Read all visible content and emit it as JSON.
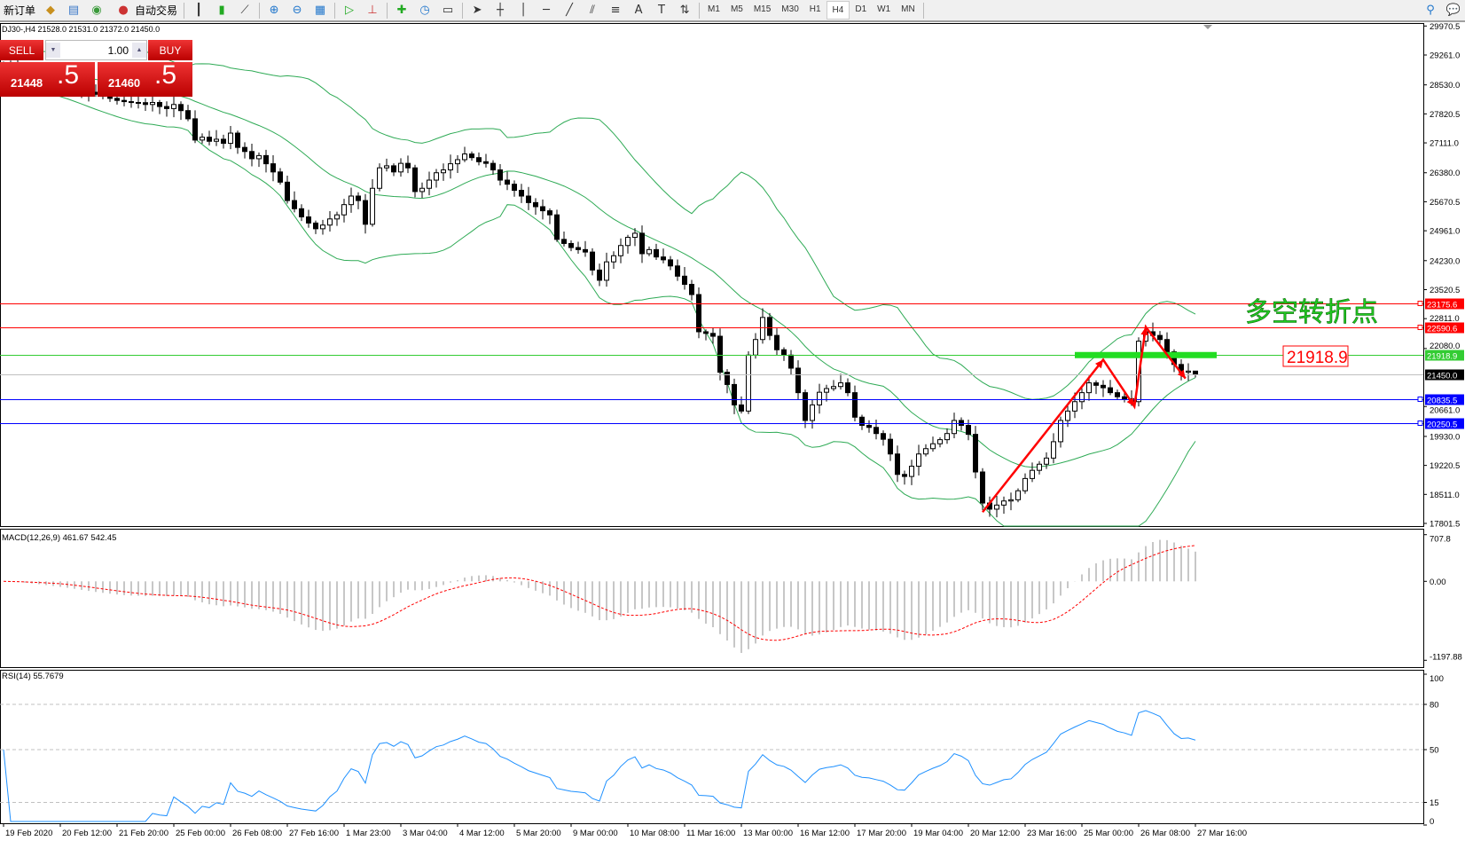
{
  "toolbar": {
    "new_order": "新订单",
    "auto_trading": "自动交易",
    "timeframes": [
      "M1",
      "M5",
      "M15",
      "M30",
      "H1",
      "H4",
      "D1",
      "W1",
      "MN"
    ],
    "active_timeframe": "H4"
  },
  "symbol_info": "DJ30-,H4  21528.0 21531.0 21372.0 21450.0",
  "trade_panel": {
    "sell_label": "SELL",
    "buy_label": "BUY",
    "lot": "1.00",
    "sell_price_main": "21448",
    "sell_price_big": ".5",
    "buy_price_main": "21460",
    "buy_price_big": ".5"
  },
  "colors": {
    "bands": "#2eaa55",
    "bull": "#ffffff",
    "bear": "#000000",
    "macd_hist": "#b4b4b4",
    "macd_signal": "#ff0000",
    "rsi": "#1e90ff",
    "arrow": "#ff0000",
    "turn_text": "#22cc22"
  },
  "chart_data": {
    "type": "candlestick",
    "symbol": "DJ30-",
    "timeframe": "H4",
    "last_bar": {
      "open": 21528.0,
      "high": 21531.0,
      "low": 21372.0,
      "close": 21450.0
    },
    "ylim": [
      17801.5,
      29970.5
    ],
    "y_ticks": [
      "29970.5",
      "29261.0",
      "28530.0",
      "27820.5",
      "27111.0",
      "26380.0",
      "25670.5",
      "24961.0",
      "24230.0",
      "23520.5",
      "22811.0",
      "22080.0",
      "20661.0",
      "19930.0",
      "19220.5",
      "18511.0",
      "17801.5"
    ],
    "x_ticks": [
      {
        "bar": 0,
        "label": "19 Feb 2020"
      },
      {
        "bar": 8,
        "label": "20 Feb 12:00"
      },
      {
        "bar": 16,
        "label": "21 Feb 20:00"
      },
      {
        "bar": 24,
        "label": "25 Feb 00:00"
      },
      {
        "bar": 32,
        "label": "26 Feb 08:00"
      },
      {
        "bar": 40,
        "label": "27 Feb 16:00"
      },
      {
        "bar": 48,
        "label": "1 Mar 23:00"
      },
      {
        "bar": 56,
        "label": "3 Mar 04:00"
      },
      {
        "bar": 64,
        "label": "4 Mar 12:00"
      },
      {
        "bar": 72,
        "label": "5 Mar 20:00"
      },
      {
        "bar": 80,
        "label": "9 Mar 00:00"
      },
      {
        "bar": 88,
        "label": "10 Mar 08:00"
      },
      {
        "bar": 96,
        "label": "11 Mar 16:00"
      },
      {
        "bar": 104,
        "label": "13 Mar 00:00"
      },
      {
        "bar": 112,
        "label": "16 Mar 12:00"
      },
      {
        "bar": 120,
        "label": "17 Mar 20:00"
      },
      {
        "bar": 128,
        "label": "19 Mar 04:00"
      },
      {
        "bar": 136,
        "label": "20 Mar 12:00"
      },
      {
        "bar": 144,
        "label": "23 Mar 16:00"
      },
      {
        "bar": 152,
        "label": "25 Mar 00:00"
      },
      {
        "bar": 160,
        "label": "26 Mar 08:00"
      },
      {
        "bar": 168,
        "label": "27 Mar 16:00"
      }
    ],
    "closes": [
      29000,
      28950,
      28900,
      28850,
      28800,
      28760,
      28700,
      28650,
      28600,
      28550,
      28480,
      28420,
      28350,
      28300,
      28250,
      28200,
      28150,
      28120,
      28100,
      28095,
      28050,
      28100,
      28000,
      27950,
      28050,
      27900,
      27700,
      27180,
      27250,
      27150,
      27200,
      27100,
      27350,
      27000,
      26900,
      26723,
      26800,
      26600,
      26400,
      26150,
      25700,
      25500,
      25300,
      25150,
      25010,
      25100,
      25250,
      25350,
      25600,
      25810,
      25700,
      25120,
      26000,
      26500,
      26550,
      26400,
      26610,
      26500,
      25920,
      26000,
      26200,
      26380,
      26450,
      26600,
      26700,
      26840,
      26750,
      26650,
      26610,
      26450,
      26200,
      26100,
      25950,
      25810,
      25650,
      25550,
      25450,
      25350,
      24750,
      24650,
      24550,
      24500,
      24440,
      24000,
      23750,
      24200,
      24350,
      24600,
      24800,
      24900,
      24400,
      24500,
      24320,
      24250,
      24100,
      23850,
      23650,
      23400,
      22490,
      22450,
      22380,
      21500,
      21200,
      20700,
      20550,
      21920,
      22300,
      22840,
      22400,
      22050,
      21920,
      21600,
      21000,
      20320,
      20700,
      21010,
      21100,
      21150,
      21240,
      21000,
      20400,
      20200,
      20150,
      20000,
      19860,
      19500,
      19000,
      18950,
      19200,
      19500,
      19630,
      19750,
      19850,
      20000,
      20320,
      20200,
      19980,
      19060,
      18300,
      18150,
      18250,
      18350,
      18380,
      18600,
      18900,
      19100,
      19250,
      19400,
      19800,
      20320,
      20550,
      20780,
      21000,
      21240,
      21180,
      21120,
      21000,
      20900,
      20850,
      20780,
      22260,
      22490,
      22400,
      22300,
      22000,
      21690,
      21500,
      21528,
      21450
    ],
    "indicators": {
      "bollinger_bands": true,
      "macd": {
        "label": "MACD(12,26,9) 461.67 542.45",
        "ylim": [
          -1197.88,
          707.8
        ],
        "ticks": [
          "707.8",
          "0.00",
          "-1197.88"
        ]
      },
      "rsi": {
        "label": "RSI(14) 55.7679",
        "ticks": [
          "100",
          "80",
          "50",
          "15",
          "0"
        ],
        "levels": [
          80,
          50,
          15
        ]
      }
    },
    "hlines": [
      {
        "price": 23175.6,
        "label": "23175.6",
        "color": "#ff0000"
      },
      {
        "price": 22590.6,
        "label": "22590.6",
        "color": "#ff0000"
      },
      {
        "price": 21918.9,
        "label": "21918.9",
        "color": "#33cc33"
      },
      {
        "price": 21450.0,
        "label": "21450.0",
        "color": "#c0c0c0",
        "tag": "#000000"
      },
      {
        "price": 20835.5,
        "label": "20835.5",
        "color": "#0000ff"
      },
      {
        "price": 20250.5,
        "label": "20250.5",
        "color": "#0000ff"
      }
    ],
    "annotations": {
      "turn_text": "多空转折点",
      "level_box": "21918.9",
      "green_bar": {
        "from_bar": 151,
        "to_bar": 171,
        "price": 21918.9
      },
      "arrow_path": [
        {
          "bar": 138,
          "price": 18078
        },
        {
          "bar": 155,
          "price": 21806
        },
        {
          "bar": 159.4,
          "price": 20663
        },
        {
          "bar": 161,
          "price": 22606
        },
        {
          "bar": 166.6,
          "price": 21348
        }
      ]
    }
  }
}
